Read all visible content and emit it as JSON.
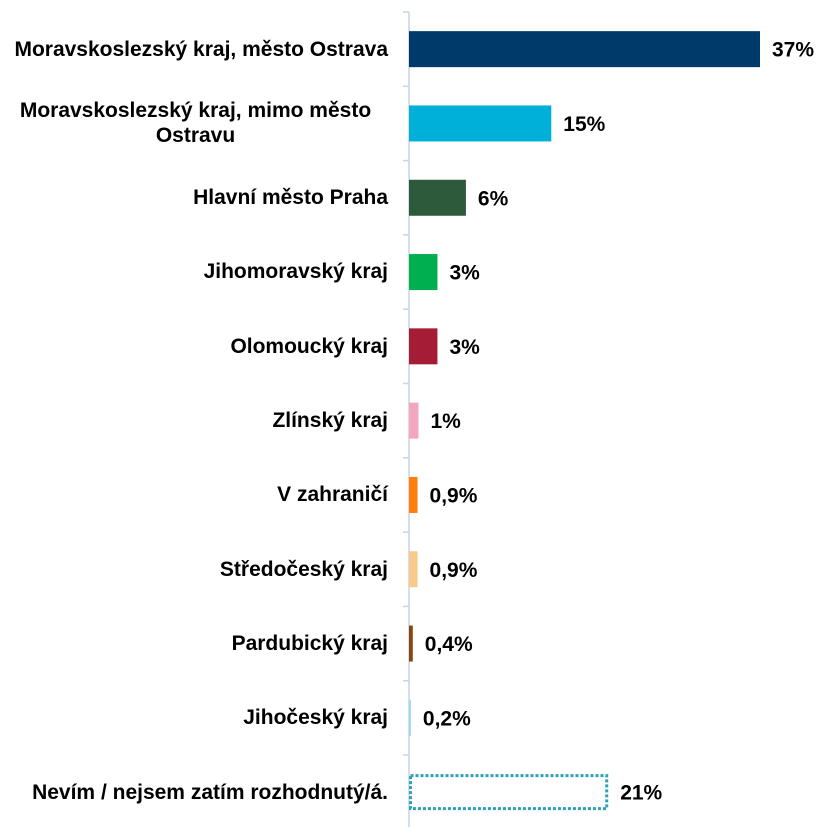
{
  "chart_data": {
    "type": "hbar",
    "categories": [
      "Moravskoslezský kraj, město Ostrava",
      "Moravskoslezský kraj, mimo město Ostravu",
      "Hlavní město Praha",
      "Jihomoravský kraj",
      "Olomoucký kraj",
      "Zlínský kraj",
      "V zahraničí",
      "Středočeský kraj",
      "Pardubický kraj",
      "Jihočeský kraj",
      "Nevím / nejsem zatím rozhodnutý/á."
    ],
    "values": [
      37,
      15,
      6,
      3,
      3,
      1,
      0.9,
      0.9,
      0.4,
      0.2,
      21
    ],
    "value_labels": [
      "37%",
      "15%",
      "6%",
      "3%",
      "3%",
      "1%",
      "0,9%",
      "0,9%",
      "0,4%",
      "0,2%",
      "21%"
    ],
    "colors": [
      "#003a6b",
      "#00b0d8",
      "#2d5a3a",
      "#00b050",
      "#a51c36",
      "#f4a6c0",
      "#ff7f0e",
      "#f9c98a",
      "#8b4513",
      "#9fd8ee",
      "#2aa3b8"
    ],
    "bar_styles": [
      "solid",
      "solid",
      "solid",
      "solid",
      "solid",
      "solid",
      "solid",
      "solid",
      "solid",
      "solid",
      "dotted"
    ]
  }
}
